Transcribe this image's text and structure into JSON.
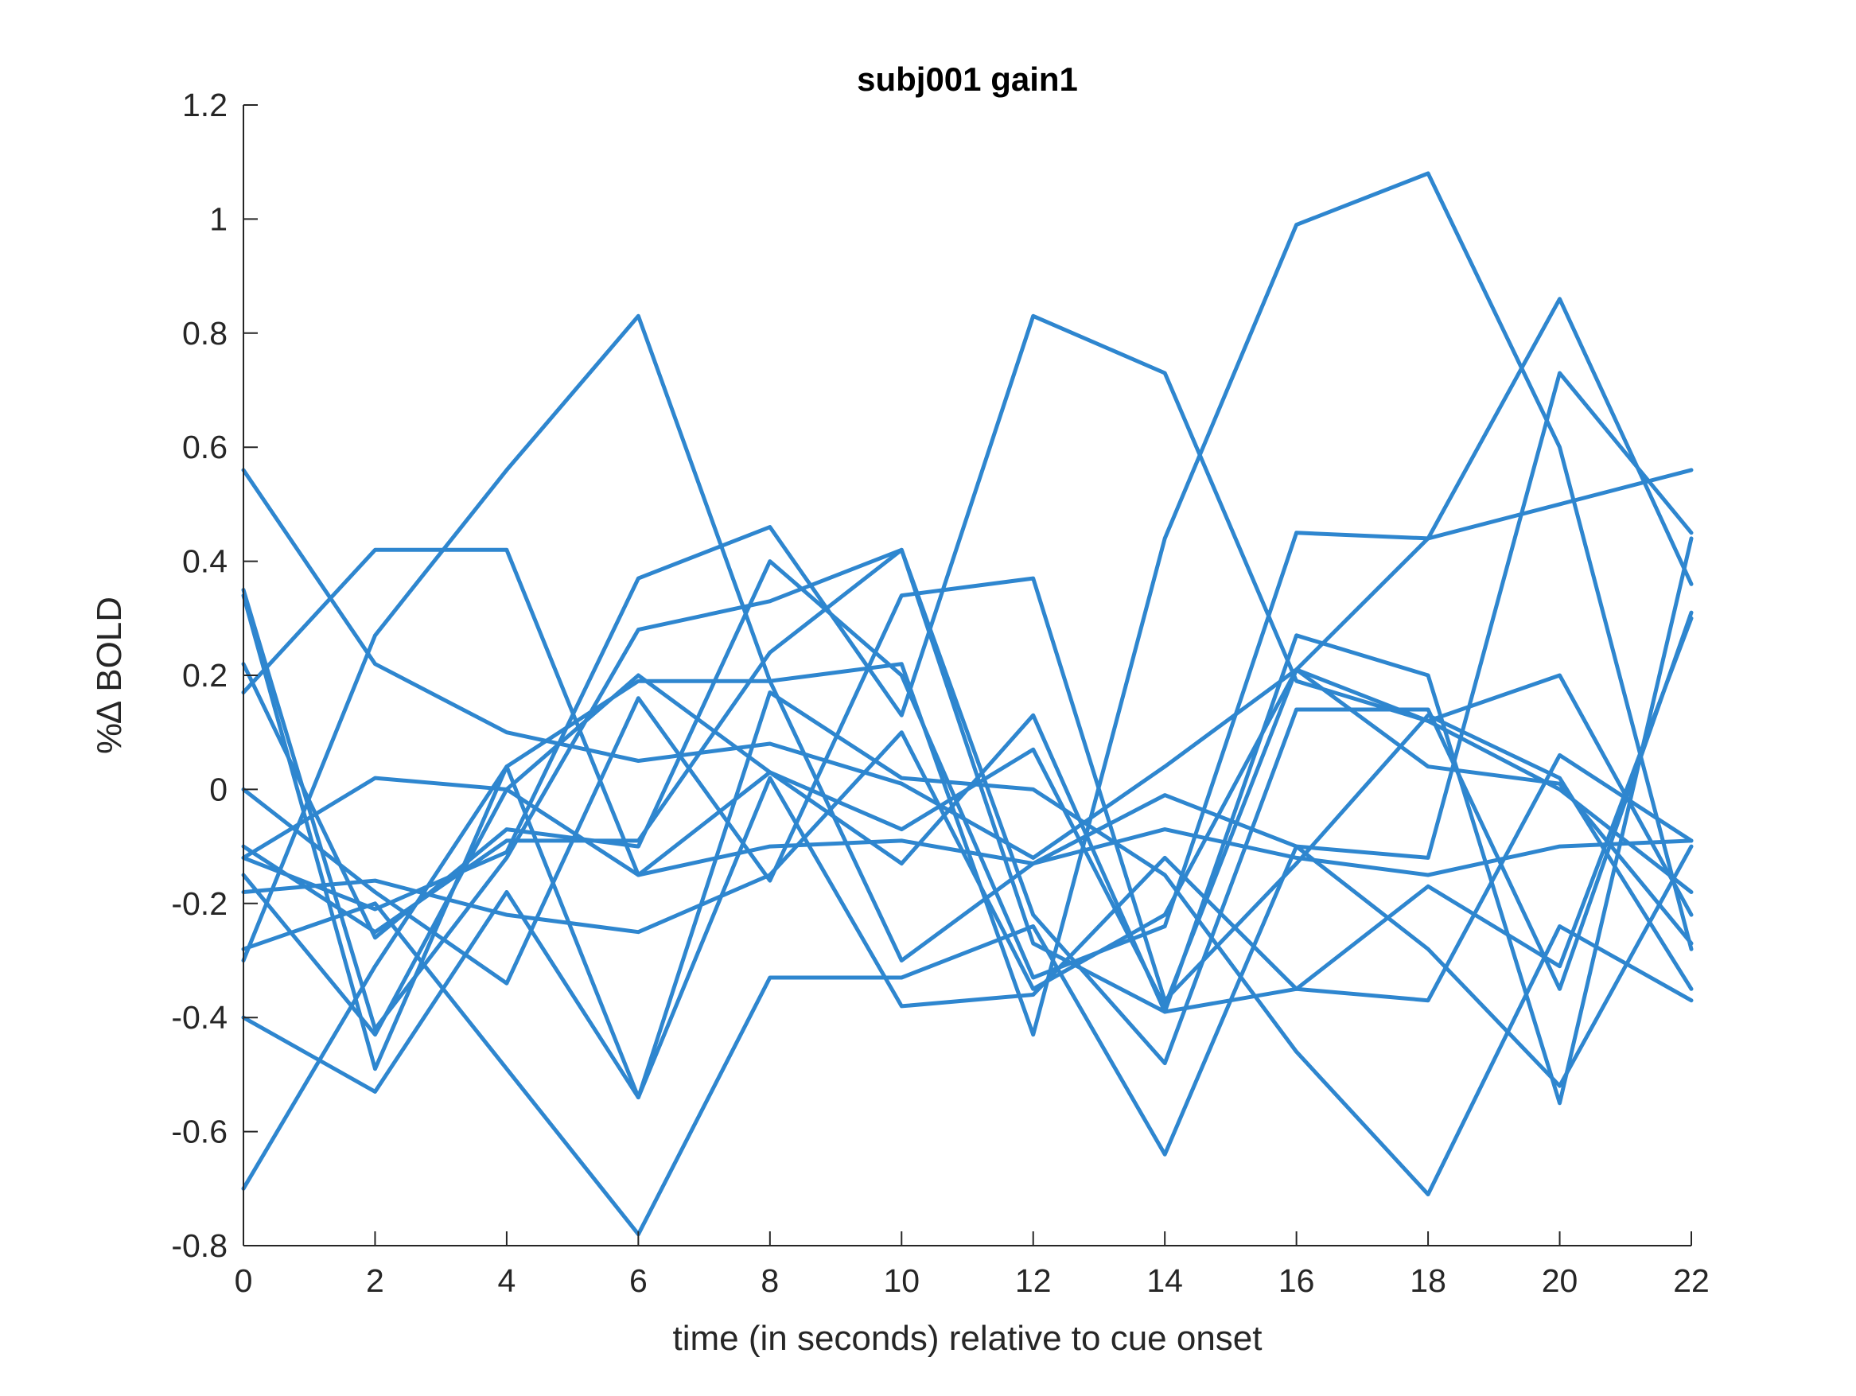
{
  "chart_data": {
    "type": "line",
    "title": "subj001 gain1",
    "xlabel": "time (in seconds) relative to cue onset",
    "ylabel": "%∆ BOLD",
    "x": [
      0,
      2,
      4,
      6,
      8,
      10,
      12,
      14,
      16,
      18,
      20,
      22
    ],
    "xlim": [
      0,
      22
    ],
    "ylim": [
      -0.8,
      1.2
    ],
    "xticks": [
      "0",
      "2",
      "4",
      "6",
      "8",
      "10",
      "12",
      "14",
      "16",
      "18",
      "20",
      "22"
    ],
    "yticks": [
      "-0.8",
      "-0.6",
      "-0.4",
      "-0.2",
      "0",
      "0.2",
      "0.4",
      "0.6",
      "0.8",
      "1",
      "1.2"
    ],
    "line_color": "#2e86cf",
    "grid": false,
    "legend": "none",
    "series": [
      {
        "values": [
          0.56,
          0.22,
          0.1,
          0.05,
          0.08,
          0.01,
          -0.12,
          0.04,
          0.21,
          0.12,
          0.0,
          -0.18
        ]
      },
      {
        "values": [
          0.17,
          0.42,
          0.42,
          -0.15,
          0.03,
          -0.07,
          0.07,
          -0.38,
          0.21,
          0.44,
          0.86,
          0.36
        ]
      },
      {
        "values": [
          -0.3,
          0.27,
          0.56,
          0.83,
          0.19,
          -0.3,
          -0.13,
          -0.01,
          -0.1,
          -0.12,
          0.73,
          0.45
        ]
      },
      {
        "values": [
          -0.12,
          -0.21,
          -0.11,
          0.37,
          0.46,
          0.13,
          0.83,
          0.73,
          0.19,
          0.12,
          0.2,
          -0.22
        ]
      },
      {
        "values": [
          0.34,
          -0.49,
          0.04,
          0.19,
          0.19,
          0.22,
          -0.43,
          0.44,
          0.99,
          1.08,
          0.6,
          -0.28
        ]
      },
      {
        "values": [
          0.35,
          -0.42,
          -0.12,
          0.28,
          0.33,
          0.42,
          -0.27,
          -0.39,
          -0.35,
          -0.37,
          0.06,
          -0.09
        ]
      },
      {
        "values": [
          0.22,
          -0.26,
          -0.07,
          -0.1,
          0.4,
          0.2,
          -0.33,
          -0.24,
          0.45,
          0.44,
          0.5,
          0.56
        ]
      },
      {
        "values": [
          0.0,
          -0.18,
          -0.34,
          0.16,
          -0.16,
          0.34,
          0.37,
          -0.37,
          -0.13,
          0.13,
          0.02,
          -0.35
        ]
      },
      {
        "values": [
          -0.1,
          -0.25,
          -0.09,
          -0.09,
          0.24,
          0.42,
          -0.22,
          -0.48,
          0.14,
          0.14,
          -0.35,
          0.31
        ]
      },
      {
        "values": [
          -0.15,
          -0.43,
          0.0,
          0.2,
          0.03,
          -0.13,
          0.13,
          -0.39,
          0.27,
          0.2,
          -0.55,
          0.44
        ]
      },
      {
        "values": [
          -0.18,
          -0.16,
          -0.22,
          -0.25,
          -0.15,
          0.1,
          -0.35,
          -0.22,
          0.21,
          0.04,
          0.01,
          -0.27
        ]
      },
      {
        "values": [
          -0.7,
          -0.31,
          0.04,
          -0.54,
          0.17,
          0.02,
          0.0,
          -0.15,
          -0.46,
          -0.71,
          -0.24,
          -0.37
        ]
      },
      {
        "values": [
          -0.28,
          -0.2,
          -0.49,
          -0.78,
          -0.33,
          -0.33,
          -0.24,
          -0.64,
          -0.1,
          -0.28,
          -0.52,
          -0.1
        ]
      },
      {
        "values": [
          -0.4,
          -0.53,
          -0.18,
          -0.54,
          0.02,
          -0.38,
          -0.36,
          -0.12,
          -0.35,
          -0.17,
          -0.31,
          0.3
        ]
      },
      {
        "values": [
          -0.12,
          0.02,
          0.0,
          -0.15,
          -0.1,
          -0.09,
          -0.13,
          -0.07,
          -0.12,
          -0.15,
          -0.1,
          -0.09
        ]
      }
    ]
  }
}
